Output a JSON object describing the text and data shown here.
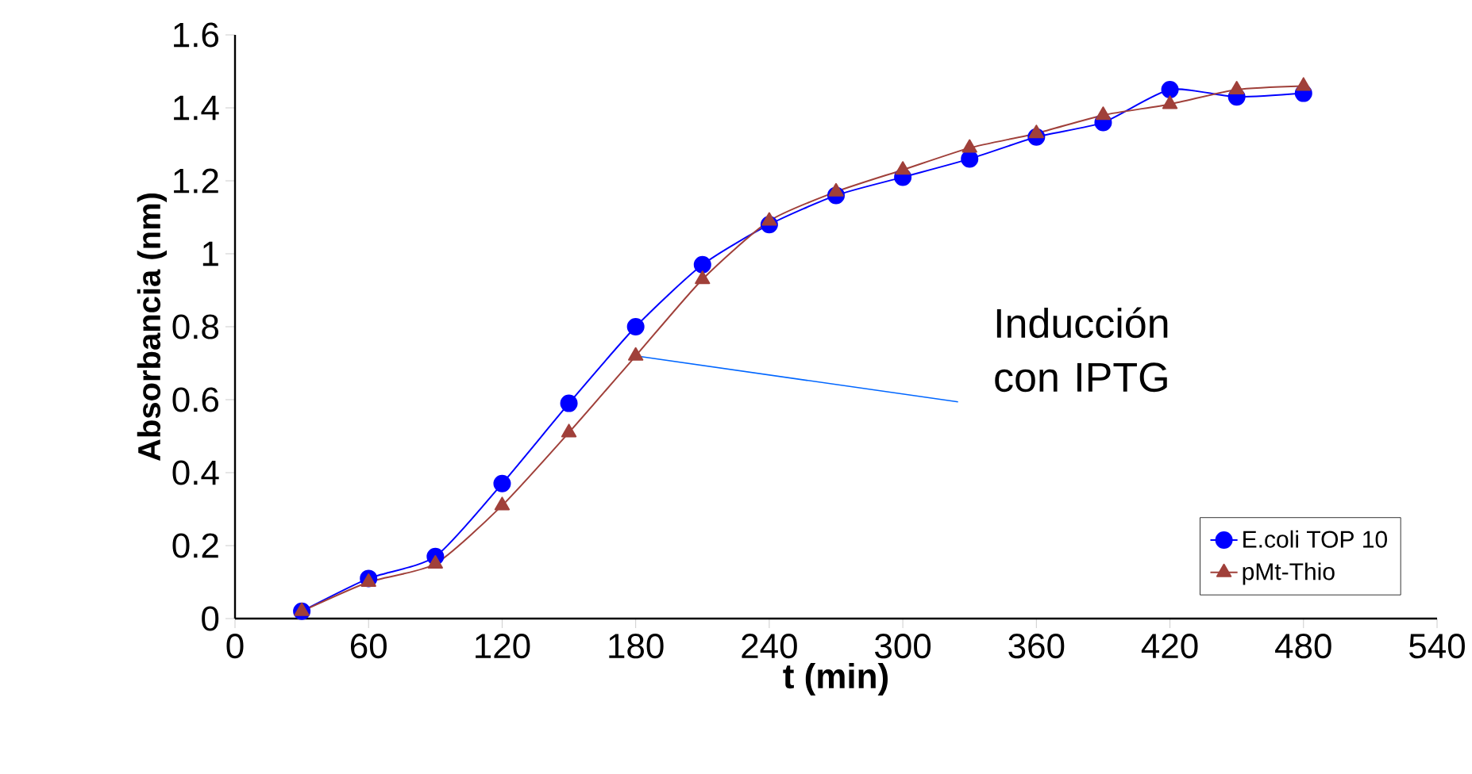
{
  "chart_data": {
    "type": "line",
    "xlabel": "t (min)",
    "ylabel": "Absorbancia (nm)",
    "x": [
      30,
      60,
      90,
      120,
      150,
      180,
      210,
      240,
      270,
      300,
      330,
      360,
      390,
      420,
      450,
      480
    ],
    "series": [
      {
        "name": "E.coli TOP 10",
        "color": "#0000ff",
        "marker": "circle",
        "values": [
          0.02,
          0.11,
          0.17,
          0.37,
          0.59,
          0.8,
          0.97,
          1.08,
          1.16,
          1.21,
          1.26,
          1.32,
          1.36,
          1.45,
          1.43,
          1.44
        ]
      },
      {
        "name": "pMt-Thio",
        "color": "#a0403a",
        "marker": "triangle",
        "values": [
          0.02,
          0.1,
          0.15,
          0.31,
          0.51,
          0.72,
          0.93,
          1.09,
          1.17,
          1.23,
          1.29,
          1.33,
          1.38,
          1.41,
          1.45,
          1.46
        ]
      }
    ],
    "xlim": [
      0,
      540
    ],
    "xticks": [
      0,
      60,
      120,
      180,
      240,
      300,
      360,
      420,
      480,
      540
    ],
    "ylim": [
      0,
      1.6
    ],
    "yticks": [
      0,
      0.2,
      0.4,
      0.6,
      0.8,
      1,
      1.2,
      1.4,
      1.6
    ],
    "annotations": [
      {
        "text": "Inducción con IPTG",
        "x": 180,
        "y": 0.72
      }
    ],
    "grid": false,
    "legend": "bottom right",
    "line_style": "solid"
  }
}
